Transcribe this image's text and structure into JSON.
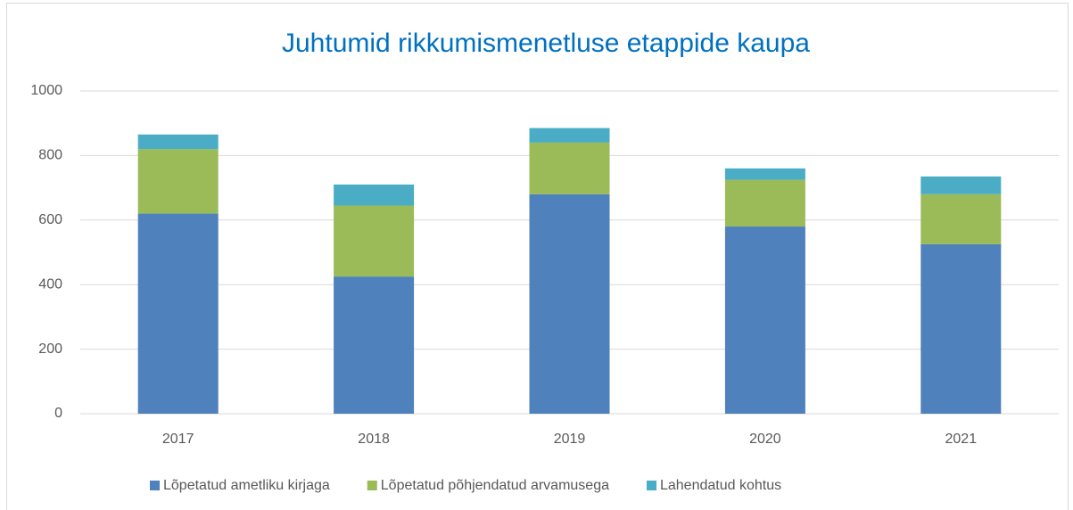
{
  "chart_data": {
    "type": "stacked_bar",
    "title": "Juhtumid rikkumismenetluse etappide kaupa",
    "categories": [
      "2017",
      "2018",
      "2019",
      "2020",
      "2021"
    ],
    "series": [
      {
        "name": "Lõpetatud ametliku kirjaga",
        "color": "#4f81bd",
        "values": [
          620,
          425,
          680,
          580,
          525
        ]
      },
      {
        "name": "Lõpetatud põhjendatud arvamusega",
        "color": "#9bbb59",
        "values": [
          200,
          220,
          160,
          145,
          155
        ]
      },
      {
        "name": "Lahendatud kohtus",
        "color": "#4bacc6",
        "values": [
          45,
          65,
          45,
          35,
          55
        ]
      }
    ],
    "ylim": [
      0,
      1000
    ],
    "yticks": [
      0,
      200,
      400,
      600,
      800,
      1000
    ],
    "grid": true,
    "legend": "bottom"
  }
}
